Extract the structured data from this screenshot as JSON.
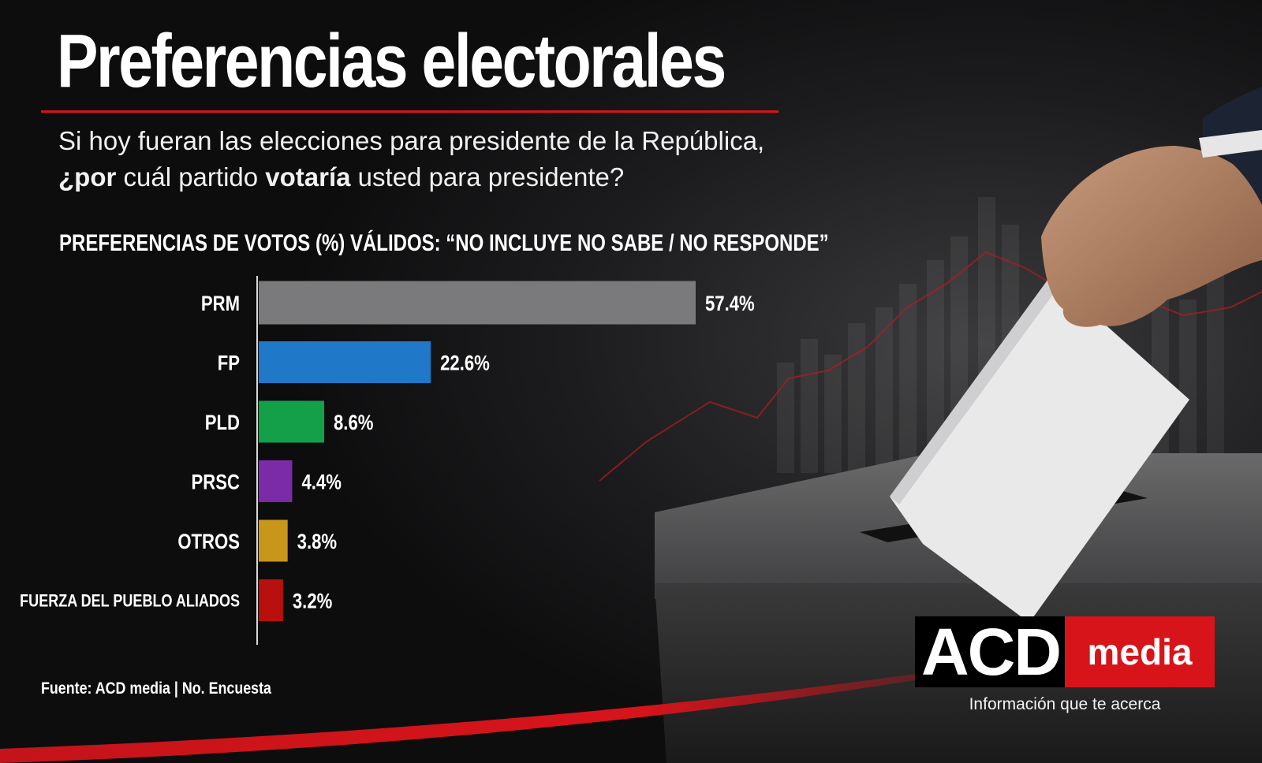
{
  "header": {
    "title": "Preferencias electorales",
    "question_part1": "Si hoy fueran las elecciones para presidente de la República,",
    "question_bold1": "¿por",
    "question_part2": " cuál partido ",
    "question_bold2": "votaría",
    "question_part3": " usted para presidente?",
    "subheading": "PREFERENCIAS DE VOTOS (%) VÁLIDOS: “NO INCLUYE NO SABE / NO RESPONDE”"
  },
  "chart_data": {
    "type": "bar",
    "orientation": "horizontal",
    "categories": [
      "PRM",
      "FP",
      "PLD",
      "PRSC",
      "OTROS",
      "FUERZA DEL PUEBLO ALIADOS"
    ],
    "values": [
      57.4,
      22.6,
      8.6,
      4.4,
      3.8,
      3.2
    ],
    "value_labels": [
      "57.4%",
      "22.6%",
      "8.6%",
      "4.4%",
      "3.8%",
      "3.2%"
    ],
    "colors": [
      "#7a7a7c",
      "#1f78c8",
      "#14a048",
      "#7b2aa8",
      "#c8961a",
      "#b8100f"
    ],
    "xlim": [
      0,
      57.4
    ],
    "grid": false,
    "legend": "none"
  },
  "footer": {
    "source": "Fuente: ACD media | No. Encuesta"
  },
  "brand": {
    "logo_acd": "ACD",
    "logo_media": "media",
    "tagline": "Información que te acerca",
    "accent_color": "#d8141b"
  }
}
